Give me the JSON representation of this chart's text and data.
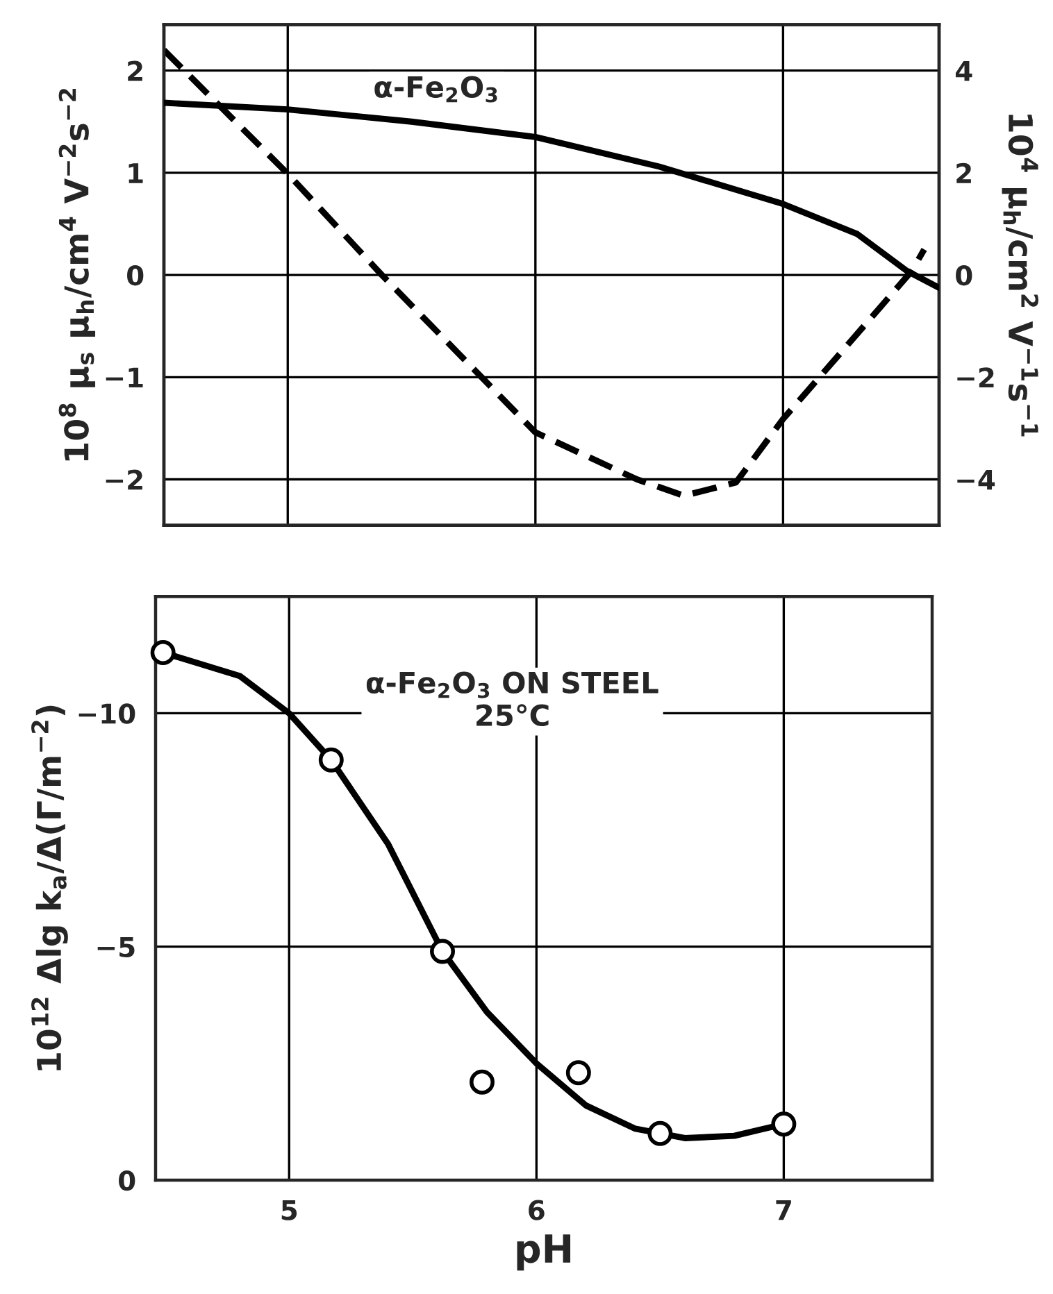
{
  "chart_data": [
    {
      "type": "line",
      "ylabel": "10$^{8}$ μ$_{s}$ μ$_{h}$/cm$^{4}$ V$^{−2}$s$^{−2}$",
      "y2label": "10$^{4}$ μ$_{h}$/cm$^{2}$ V$^{−1}$s$^{−1}$",
      "xlim": [
        4.5,
        7.63
      ],
      "xticks": [
        5,
        6,
        7
      ],
      "ylim": [
        -2.45,
        2.45
      ],
      "yticks": [
        -2,
        -1,
        0,
        1,
        2
      ],
      "y2lim": [
        -4.9,
        4.9
      ],
      "y2ticks": [
        -4,
        -2,
        0,
        2,
        4
      ],
      "tick_labels": "y",
      "grid": true,
      "annotations": [
        "α-Fe$_{2}$O$_{3}$"
      ],
      "series": [
        {
          "color": "#000000",
          "axis": "y2",
          "line_style": "solid",
          "x": [
            4.5,
            5.0,
            5.5,
            6.0,
            6.5,
            7.0,
            7.3,
            7.5,
            7.63
          ],
          "values": [
            3.37,
            3.24,
            3.0,
            2.7,
            2.12,
            1.39,
            0.8,
            0.08,
            -0.25
          ]
        },
        {
          "color": "#000000",
          "line_style": "dashed",
          "x": [
            4.5,
            5.0,
            5.38,
            6.0,
            6.41,
            6.6,
            6.81,
            7.0,
            7.33,
            7.52,
            7.57
          ],
          "values": [
            2.2,
            0.99,
            0.0,
            -1.54,
            -2.0,
            -2.16,
            -2.03,
            -1.41,
            -0.49,
            0.04,
            0.25
          ]
        }
      ]
    },
    {
      "type": "line",
      "xlabel": "pH",
      "ylabel": "10$^{12}$ Δlg k$_{a}$/Δ(Γ/m$^{−2}$)",
      "xlim": [
        4.46,
        7.6
      ],
      "xticks": [
        5,
        6,
        7
      ],
      "ylim": [
        0,
        -12.5
      ],
      "yticks": [
        -10,
        -5,
        0
      ],
      "grid": true,
      "annotations": [
        "α-Fe$_{2}$O$_{3}$ ON STEEL\n25°C"
      ],
      "series": [
        {
          "color": "#000000",
          "line_style": "solid",
          "x": [
            4.49,
            4.8,
            5.0,
            5.17,
            5.4,
            5.62,
            5.8,
            6.0,
            6.2,
            6.4,
            6.6,
            6.8,
            7.0
          ],
          "values": [
            -11.3,
            -10.8,
            -10.0,
            -9.0,
            -7.2,
            -4.9,
            -3.6,
            -2.5,
            -1.6,
            -1.1,
            -0.9,
            -0.95,
            -1.2
          ]
        },
        {
          "type": "scatter",
          "color": "#000000",
          "marker": "circle",
          "x": [
            4.49,
            5.17,
            5.62,
            5.78,
            6.17,
            6.5,
            7.0
          ],
          "values": [
            -11.3,
            -9.0,
            -4.9,
            -2.1,
            -2.3,
            -1.0,
            -1.2
          ]
        }
      ]
    }
  ]
}
